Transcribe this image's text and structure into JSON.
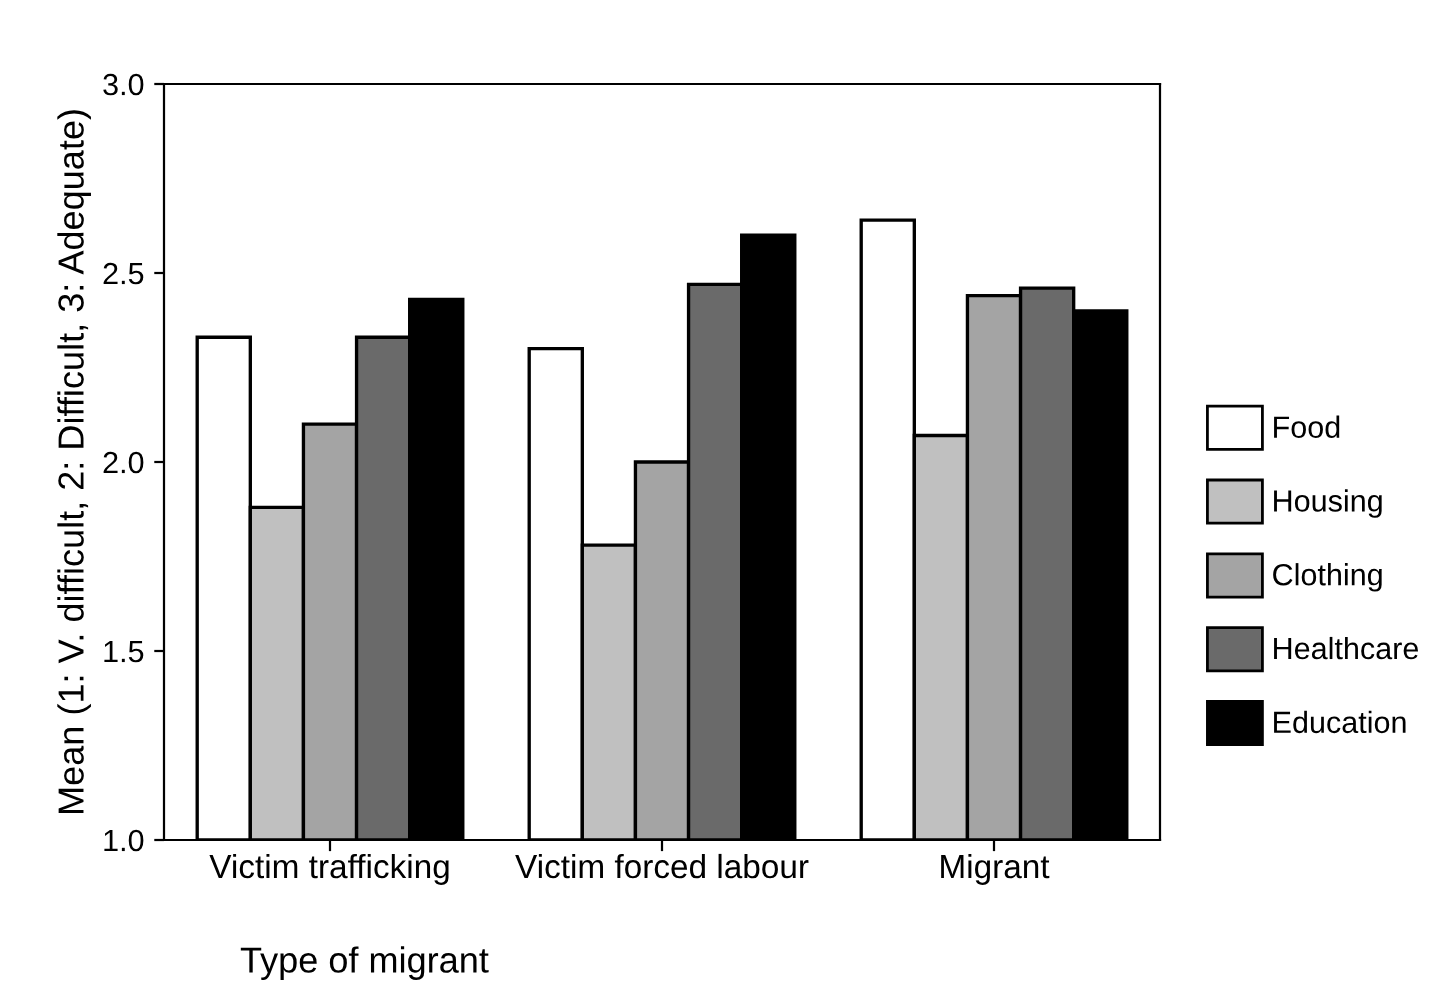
{
  "chart_data": {
    "type": "bar",
    "xlabel": "Type of migrant",
    "ylabel": "Mean (1: V. difficult, 2: Difficult, 3: Adequate)",
    "categories": [
      "Victim trafficking",
      "Victim forced labour",
      "Migrant"
    ],
    "series": [
      {
        "name": "Food",
        "color": "#ffffff",
        "values": [
          2.33,
          2.3,
          2.64
        ]
      },
      {
        "name": "Housing",
        "color": "#c0c0c0",
        "values": [
          1.88,
          1.78,
          2.07
        ]
      },
      {
        "name": "Clothing",
        "color": "#a4a4a4",
        "values": [
          2.1,
          2.0,
          2.44
        ]
      },
      {
        "name": "Healthcare",
        "color": "#6a6a6a",
        "values": [
          2.33,
          2.47,
          2.46
        ]
      },
      {
        "name": "Education",
        "color": "#000000",
        "values": [
          2.43,
          2.6,
          2.4
        ]
      }
    ],
    "ylim": [
      1.0,
      3.0
    ],
    "yticks": [
      {
        "value": 1.0,
        "label": "1.0"
      },
      {
        "value": 1.5,
        "label": "1.5"
      },
      {
        "value": 2.0,
        "label": "2.0"
      },
      {
        "value": 2.5,
        "label": "2.5"
      },
      {
        "value": 3.0,
        "label": "3.0"
      }
    ],
    "grid": false,
    "legend": "right"
  }
}
